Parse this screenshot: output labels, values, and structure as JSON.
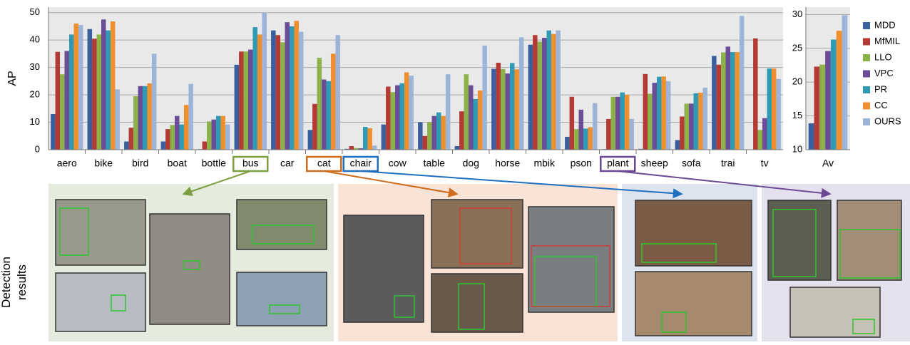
{
  "chart_data": [
    {
      "type": "bar",
      "y_label": "AP",
      "categories": [
        "aero",
        "bike",
        "bird",
        "boat",
        "bottle",
        "bus",
        "car",
        "cat",
        "chair",
        "cow",
        "table",
        "dog",
        "horse",
        "mbik",
        "pson",
        "plant",
        "sheep",
        "sofa",
        "trai",
        "tv"
      ],
      "series": [
        {
          "name": "MDD",
          "color": "#3a5f9e",
          "values": [
            13,
            44,
            3,
            3,
            0.2,
            31,
            43.5,
            7.2,
            0.3,
            9.2,
            10,
            1.3,
            29.5,
            38.3,
            4.7,
            0.2,
            0.3,
            3.5,
            34.2,
            0
          ]
        },
        {
          "name": "MfMIL",
          "color": "#b43a36",
          "values": [
            35.7,
            40.5,
            8,
            7.5,
            3,
            35.8,
            41.8,
            16.7,
            1.3,
            23,
            5,
            14,
            31.7,
            41.8,
            19.3,
            11.2,
            27.6,
            12.1,
            31,
            40.6
          ]
        },
        {
          "name": "LLO",
          "color": "#8db24a",
          "values": [
            27.5,
            42,
            19.5,
            9,
            10.3,
            35.8,
            39.2,
            33.5,
            0.6,
            21,
            10,
            27.5,
            29.4,
            39.4,
            7.5,
            19.3,
            20.4,
            16.8,
            35.5,
            7.2
          ]
        },
        {
          "name": "VPC",
          "color": "#6b4d97",
          "values": [
            36,
            47.5,
            23.2,
            12.3,
            11,
            36.5,
            46.5,
            25.6,
            0.5,
            23.5,
            12.3,
            23.5,
            27.8,
            40.8,
            14.6,
            19.3,
            24.4,
            16.8,
            37.6,
            11.5
          ]
        },
        {
          "name": "PR",
          "color": "#2e9ab4",
          "values": [
            42,
            43.5,
            23.2,
            9.2,
            12.3,
            44.7,
            45,
            25,
            8.3,
            24.2,
            13.6,
            18.5,
            31.6,
            43.5,
            7.7,
            20.9,
            26.6,
            20.6,
            35.6,
            29.6
          ]
        },
        {
          "name": "CC",
          "color": "#ef8f2e",
          "values": [
            46,
            46.8,
            24.2,
            16.3,
            12.3,
            42,
            47,
            35,
            7.8,
            28.2,
            12.3,
            21.6,
            29.3,
            42.2,
            8.2,
            20,
            26.7,
            20.8,
            35.6,
            29.6
          ]
        },
        {
          "name": "OURS",
          "color": "#9db4d9",
          "values": [
            45.5,
            22,
            35,
            24,
            9.2,
            50,
            43,
            41.8,
            1.5,
            27,
            27.5,
            38,
            41,
            43.5,
            17,
            11.2,
            25,
            22.6,
            48.8,
            25.8
          ]
        }
      ],
      "ylim": [
        0,
        52
      ],
      "yticks": [
        0,
        10,
        20,
        30,
        40,
        50
      ],
      "grid": true
    },
    {
      "type": "bar",
      "categories": [
        "Av"
      ],
      "series": [
        {
          "values": [
            13.9
          ]
        },
        {
          "values": [
            22.3
          ]
        },
        {
          "values": [
            22.6
          ]
        },
        {
          "values": [
            24.6
          ]
        },
        {
          "values": [
            26.3
          ]
        },
        {
          "values": [
            27.6
          ]
        },
        {
          "values": [
            29.9
          ]
        }
      ],
      "ylim": [
        10,
        31.1
      ],
      "yticks": [
        10,
        15,
        20,
        25,
        30
      ],
      "grid": true
    }
  ],
  "panel_label_lines": [
    "Detection",
    "results"
  ]
}
